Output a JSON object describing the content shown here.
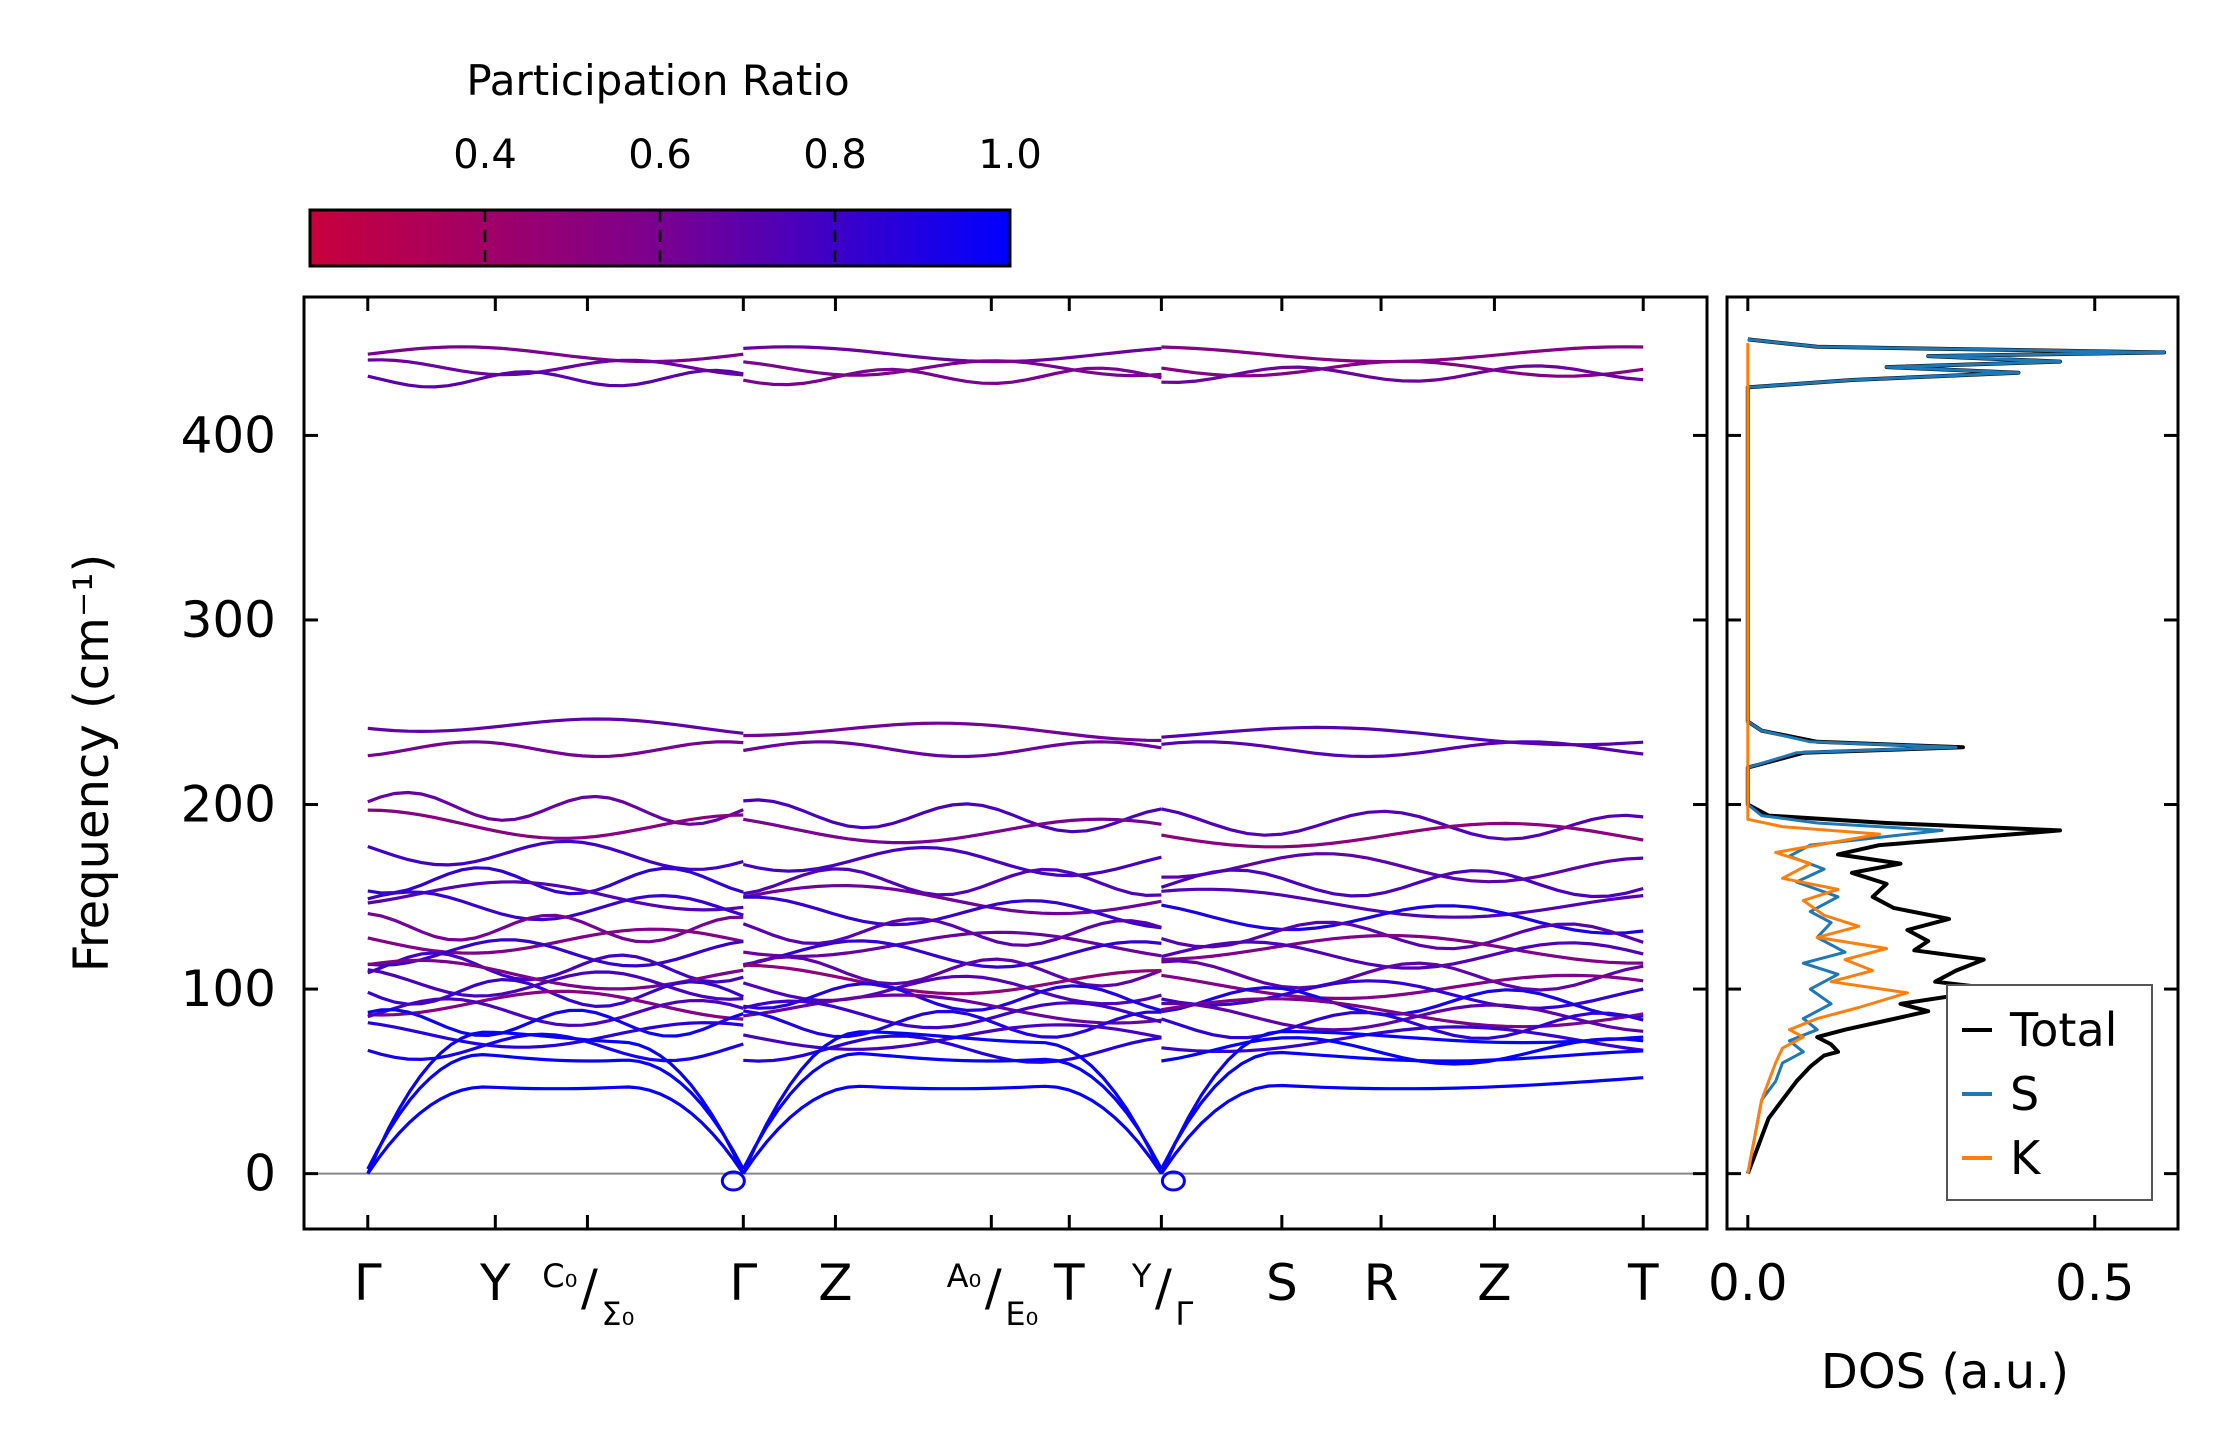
{
  "chart_data": [
    {
      "type": "line",
      "panel": "phonon-band-structure",
      "ylabel": "Frequency (cm⁻¹)",
      "ylim": [
        -30,
        475
      ],
      "yticks": [
        0,
        100,
        200,
        300,
        400
      ],
      "ytick_labels": [
        "0",
        "100",
        "200",
        "300",
        "400"
      ],
      "zero_line": true,
      "high_symmetry_points": [
        {
          "label": "Γ",
          "x": 0.0
        },
        {
          "label": "Y",
          "x": 0.9
        },
        {
          "label": "C₀/Σ₀",
          "x": 1.55
        },
        {
          "label": "Γ",
          "x": 2.65
        },
        {
          "label": "Z",
          "x": 3.3
        },
        {
          "label": "A₀/E₀",
          "x": 4.4
        },
        {
          "label": "T",
          "x": 4.95
        },
        {
          "label": "Y/Γ",
          "x": 5.6
        },
        {
          "label": "S",
          "x": 6.45
        },
        {
          "label": "R",
          "x": 7.15
        },
        {
          "label": "Z",
          "x": 7.95
        },
        {
          "label": "T",
          "x": 9.0
        }
      ],
      "xlim": [
        -0.45,
        9.45
      ],
      "segments": [
        [
          0.0,
          2.65
        ],
        [
          2.65,
          5.6
        ],
        [
          5.6,
          9.0
        ]
      ],
      "colormap": {
        "low": "#c8003c",
        "mid": "#7a0090",
        "high": "#0000ff"
      },
      "optical_branches": [
        {
          "band": "high",
          "start": 444,
          "end": 444,
          "pr": 0.6
        },
        {
          "band": "high",
          "start": 437,
          "end": 436,
          "pr": 0.6
        },
        {
          "band": "high",
          "start": 430,
          "end": 434,
          "pr": 0.65
        },
        {
          "band": "mid",
          "start": 244,
          "end": 236,
          "pr": 0.68
        },
        {
          "band": "mid",
          "start": 230,
          "end": 230,
          "pr": 0.66
        },
        {
          "band": "low",
          "start": 200,
          "end": 187,
          "pr": 0.72
        },
        {
          "band": "low",
          "start": 190,
          "end": 182,
          "pr": 0.55
        },
        {
          "band": "low",
          "start": 175,
          "end": 164,
          "pr": 0.75
        },
        {
          "band": "low",
          "start": 159,
          "end": 157,
          "pr": 0.78
        },
        {
          "band": "low",
          "start": 152,
          "end": 145,
          "pr": 0.7
        },
        {
          "band": "low",
          "start": 146,
          "end": 137,
          "pr": 0.85
        },
        {
          "band": "low",
          "start": 134,
          "end": 128,
          "pr": 0.68
        },
        {
          "band": "low",
          "start": 127,
          "end": 121,
          "pr": 0.6
        },
        {
          "band": "low",
          "start": 120,
          "end": 118,
          "pr": 0.8
        },
        {
          "band": "low",
          "start": 113,
          "end": 106,
          "pr": 0.72
        },
        {
          "band": "low",
          "start": 109,
          "end": 100,
          "pr": 0.55
        },
        {
          "band": "low",
          "start": 104,
          "end": 96,
          "pr": 0.78
        },
        {
          "band": "low",
          "start": 99,
          "end": 92,
          "pr": 0.88
        },
        {
          "band": "low",
          "start": 93,
          "end": 86,
          "pr": 0.6
        },
        {
          "band": "low",
          "start": 88,
          "end": 84,
          "pr": 0.75
        },
        {
          "band": "low",
          "start": 82,
          "end": 80,
          "pr": 0.9
        },
        {
          "band": "low",
          "start": 76,
          "end": 72,
          "pr": 0.82
        },
        {
          "band": "low",
          "start": 69,
          "end": 66,
          "pr": 0.93
        }
      ],
      "acoustic_branches": [
        {
          "plateau": 74,
          "pr": 0.97
        },
        {
          "plateau": 64,
          "pr": 0.98
        },
        {
          "plateau": 52,
          "pr": 0.98
        }
      ]
    },
    {
      "type": "colorbar",
      "title": "Participation Ratio",
      "range": [
        0.2,
        1.0
      ],
      "ticks": [
        0.4,
        0.6,
        0.8,
        1.0
      ],
      "tick_labels": [
        "0.4",
        "0.6",
        "0.8",
        "1.0"
      ],
      "colors": [
        "#c8003c",
        "#7a0090",
        "#0000ff"
      ]
    },
    {
      "type": "line",
      "panel": "density-of-states",
      "xlabel": "DOS (a.u.)",
      "xlim": [
        -0.03,
        0.62
      ],
      "xticks": [
        0.0,
        0.5
      ],
      "xtick_labels": [
        "0.0",
        "0.5"
      ],
      "ylim": [
        -30,
        475
      ],
      "legend_position": "bottom-right",
      "series": [
        {
          "name": "Total",
          "color": "#000000",
          "points": [
            [
              0,
              0
            ],
            [
              0.01,
              10
            ],
            [
              0.02,
              20
            ],
            [
              0.03,
              30
            ],
            [
              0.05,
              40
            ],
            [
              0.07,
              50
            ],
            [
              0.09,
              58
            ],
            [
              0.11,
              64
            ],
            [
              0.13,
              66
            ],
            [
              0.12,
              70
            ],
            [
              0.1,
              74
            ],
            [
              0.14,
              78
            ],
            [
              0.2,
              83
            ],
            [
              0.26,
              88
            ],
            [
              0.22,
              92
            ],
            [
              0.36,
              100
            ],
            [
              0.27,
              104
            ],
            [
              0.3,
              110
            ],
            [
              0.34,
              116
            ],
            [
              0.24,
              121
            ],
            [
              0.26,
              126
            ],
            [
              0.23,
              132
            ],
            [
              0.29,
              138
            ],
            [
              0.21,
              144
            ],
            [
              0.18,
              150
            ],
            [
              0.2,
              157
            ],
            [
              0.15,
              163
            ],
            [
              0.22,
              168
            ],
            [
              0.13,
              173
            ],
            [
              0.19,
              178
            ],
            [
              0.45,
              186
            ],
            [
              0.2,
              190
            ],
            [
              0.03,
              194
            ],
            [
              0.0,
              200
            ],
            [
              0.0,
              220
            ],
            [
              0.08,
              228
            ],
            [
              0.31,
              231
            ],
            [
              0.1,
              234
            ],
            [
              0.02,
              240
            ],
            [
              0.0,
              245
            ],
            [
              0.0,
              426
            ],
            [
              0.15,
              430
            ],
            [
              0.39,
              434
            ],
            [
              0.2,
              437
            ],
            [
              0.45,
              440
            ],
            [
              0.26,
              443
            ],
            [
              0.6,
              445
            ],
            [
              0.1,
              448
            ],
            [
              0.0,
              452
            ]
          ]
        },
        {
          "name": "S",
          "color": "#1f77b4",
          "points": [
            [
              0,
              0
            ],
            [
              0.005,
              10
            ],
            [
              0.01,
              20
            ],
            [
              0.015,
              30
            ],
            [
              0.02,
              40
            ],
            [
              0.04,
              50
            ],
            [
              0.05,
              60
            ],
            [
              0.08,
              66
            ],
            [
              0.06,
              72
            ],
            [
              0.1,
              78
            ],
            [
              0.08,
              84
            ],
            [
              0.12,
              92
            ],
            [
              0.09,
              100
            ],
            [
              0.13,
              108
            ],
            [
              0.08,
              114
            ],
            [
              0.14,
              120
            ],
            [
              0.1,
              128
            ],
            [
              0.12,
              136
            ],
            [
              0.09,
              142
            ],
            [
              0.13,
              150
            ],
            [
              0.07,
              158
            ],
            [
              0.11,
              165
            ],
            [
              0.06,
              172
            ],
            [
              0.09,
              178
            ],
            [
              0.28,
              186
            ],
            [
              0.1,
              190
            ],
            [
              0.02,
              194
            ],
            [
              0.0,
              200
            ],
            [
              0.0,
              220
            ],
            [
              0.07,
              228
            ],
            [
              0.3,
              231
            ],
            [
              0.09,
              234
            ],
            [
              0.02,
              240
            ],
            [
              0.0,
              245
            ],
            [
              0.0,
              426
            ],
            [
              0.15,
              430
            ],
            [
              0.39,
              434
            ],
            [
              0.2,
              437
            ],
            [
              0.45,
              440
            ],
            [
              0.26,
              443
            ],
            [
              0.6,
              445
            ],
            [
              0.1,
              448
            ],
            [
              0.0,
              452
            ]
          ]
        },
        {
          "name": "K",
          "color": "#ff7f0e",
          "points": [
            [
              0,
              0
            ],
            [
              0.005,
              10
            ],
            [
              0.01,
              20
            ],
            [
              0.015,
              30
            ],
            [
              0.02,
              40
            ],
            [
              0.03,
              50
            ],
            [
              0.04,
              60
            ],
            [
              0.05,
              68
            ],
            [
              0.08,
              74
            ],
            [
              0.06,
              78
            ],
            [
              0.1,
              84
            ],
            [
              0.16,
              90
            ],
            [
              0.23,
              98
            ],
            [
              0.12,
              104
            ],
            [
              0.18,
              110
            ],
            [
              0.14,
              116
            ],
            [
              0.2,
              122
            ],
            [
              0.1,
              128
            ],
            [
              0.16,
              134
            ],
            [
              0.11,
              140
            ],
            [
              0.08,
              148
            ],
            [
              0.13,
              154
            ],
            [
              0.05,
              160
            ],
            [
              0.09,
              168
            ],
            [
              0.04,
              174
            ],
            [
              0.19,
              184
            ],
            [
              0.05,
              188
            ],
            [
              0.0,
              192
            ],
            [
              0.0,
              450
            ]
          ]
        }
      ]
    }
  ]
}
